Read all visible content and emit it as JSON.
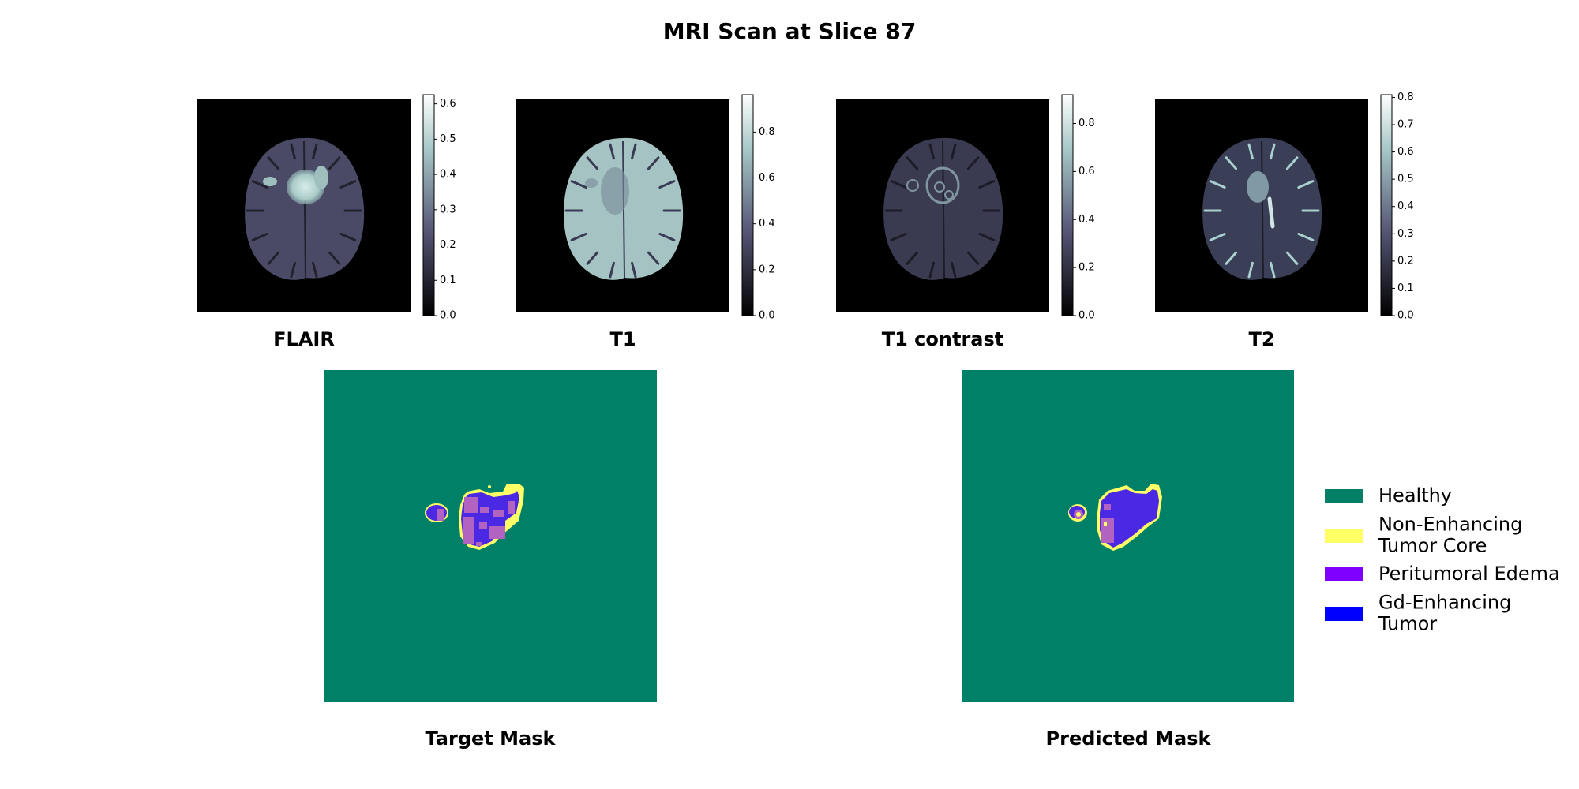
{
  "figure": {
    "title": "MRI Scan at Slice 87"
  },
  "scans": [
    {
      "label": "FLAIR",
      "colorbar": {
        "vmin": 0.0,
        "vmax": 0.626,
        "ticks": [
          "0.0",
          "0.1",
          "0.2",
          "0.3",
          "0.4",
          "0.5",
          "0.6"
        ]
      }
    },
    {
      "label": "T1",
      "colorbar": {
        "vmin": 0.0,
        "vmax": 0.963,
        "ticks": [
          "0.0",
          "0.2",
          "0.4",
          "0.6",
          "0.8"
        ]
      }
    },
    {
      "label": "T1 contrast",
      "colorbar": {
        "vmin": 0.0,
        "vmax": 0.92,
        "ticks": [
          "0.0",
          "0.2",
          "0.4",
          "0.6",
          "0.8"
        ]
      }
    },
    {
      "label": "T2",
      "colorbar": {
        "vmin": 0.0,
        "vmax": 0.81,
        "ticks": [
          "0.0",
          "0.1",
          "0.2",
          "0.3",
          "0.4",
          "0.5",
          "0.6",
          "0.7",
          "0.8"
        ]
      }
    }
  ],
  "colormap": "bone",
  "masks": [
    {
      "label": "Target Mask"
    },
    {
      "label": "Predicted Mask"
    }
  ],
  "legend": {
    "placement": "right",
    "items": [
      {
        "lines": [
          "Healthy"
        ],
        "color": "#008066"
      },
      {
        "lines": [
          "Non-Enhancing",
          "Tumor Core"
        ],
        "color": "#ffff66"
      },
      {
        "lines": [
          "Peritumoral Edema"
        ],
        "color": "#8000ff"
      },
      {
        "lines": [
          "Gd-Enhancing",
          "Tumor"
        ],
        "color": "#0000ff"
      }
    ]
  },
  "mask_colors": {
    "healthy": "#008066",
    "core": "#ffff66",
    "edema_overlay": "#b262c0",
    "tumor_overlay": "#4a28e4"
  }
}
